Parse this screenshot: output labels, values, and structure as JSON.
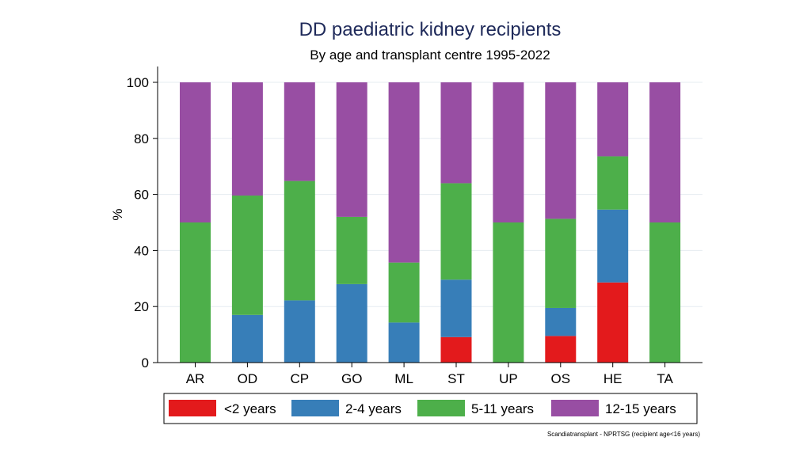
{
  "chart_data": {
    "type": "bar",
    "stacked": true,
    "title": "DD paediatric kidney recipients",
    "subtitle": "By age and transplant centre 1995-2022",
    "xlabel": "",
    "ylabel": "%",
    "ylim": [
      0,
      100
    ],
    "yticks": [
      0,
      20,
      40,
      60,
      80,
      100
    ],
    "grid": true,
    "categories": [
      "AR",
      "OD",
      "CP",
      "GO",
      "ML",
      "ST",
      "UP",
      "OS",
      "HE",
      "TA"
    ],
    "series": [
      {
        "name": "<2 years",
        "color": "#e31a1c",
        "values": [
          0,
          0,
          0,
          0,
          0,
          9.1,
          0,
          9.5,
          28.6,
          0
        ]
      },
      {
        "name": "2-4 years",
        "color": "#377eb8",
        "values": [
          0,
          17,
          22.2,
          28,
          14.3,
          20.5,
          0,
          10,
          26,
          0
        ]
      },
      {
        "name": "5-11 years",
        "color": "#4daf4a",
        "values": [
          50,
          42.6,
          42.6,
          24,
          21.4,
          34.4,
          50,
          31.8,
          19,
          50
        ]
      },
      {
        "name": "12-15 years",
        "color": "#984ea3",
        "values": [
          50,
          40.4,
          35.2,
          48,
          64.3,
          36,
          50,
          48.7,
          26.4,
          50
        ]
      }
    ],
    "legend_position": "bottom",
    "source_note": "Scandiatransplant - NPRTSG (recipient age<16 years)"
  }
}
